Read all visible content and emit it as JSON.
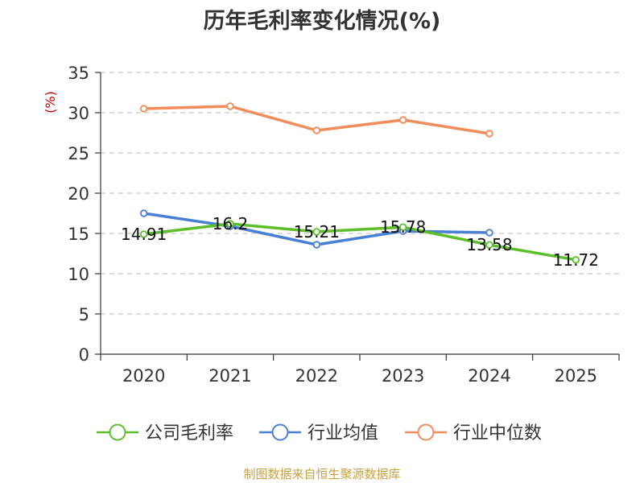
{
  "title": "历年毛利率变化情况(%)",
  "source": "制图数据来自恒生聚源数据库",
  "chart_data": {
    "type": "line",
    "title": "历年毛利率变化情况(%)",
    "ylabel": "(%)",
    "xlabel": "",
    "categories": [
      "2020",
      "2021",
      "2022",
      "2023",
      "2024",
      "2025"
    ],
    "ylim": [
      0,
      35
    ],
    "yticks": [
      0,
      5,
      10,
      15,
      20,
      25,
      30,
      35
    ],
    "grid": "horizontal dashed",
    "legend_position": "bottom",
    "series": [
      {
        "name": "公司毛利率",
        "color": "#5cbf2a",
        "values": [
          14.91,
          16.2,
          15.21,
          15.78,
          13.58,
          11.72
        ],
        "labels": [
          "14.91",
          "16.2",
          "15.21",
          "15.78",
          "13.58",
          "11.72"
        ]
      },
      {
        "name": "行业均值",
        "color": "#4a7fd6",
        "values": [
          17.5,
          15.9,
          13.6,
          15.3,
          15.1,
          null
        ]
      },
      {
        "name": "行业中位数",
        "color": "#f28c5a",
        "values": [
          30.5,
          30.8,
          27.8,
          29.1,
          27.4,
          null
        ]
      }
    ],
    "ylabel_color": "#cc0000"
  }
}
